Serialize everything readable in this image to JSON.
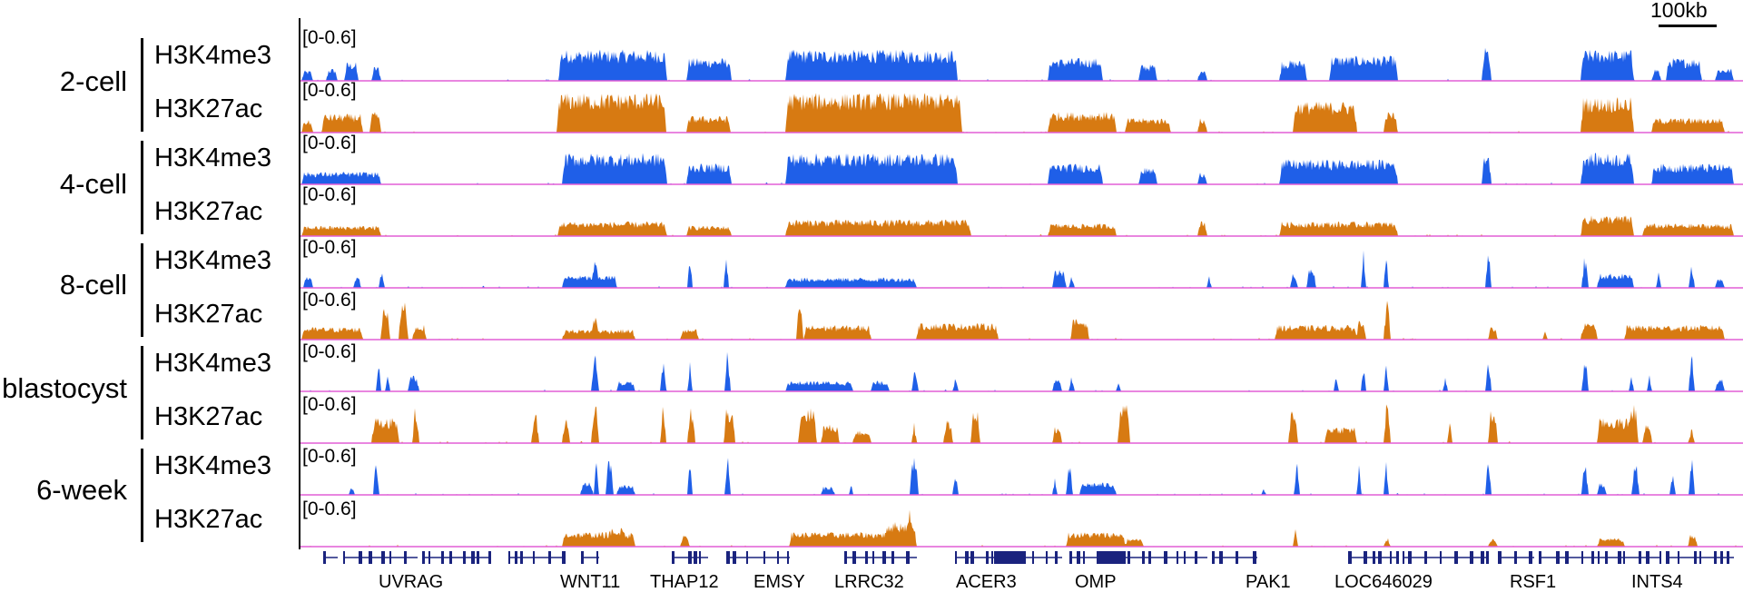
{
  "scale": "100kb",
  "range_label": "[0-0.6]",
  "colors": {
    "H3K4me3": "#1f5fe8",
    "H3K27ac": "#d77a12",
    "baseline": "#e25fd6",
    "gene": "#1a237e"
  },
  "stages": [
    {
      "name": "2-cell",
      "tracks": [
        "H3K4me3",
        "H3K27ac"
      ]
    },
    {
      "name": "4-cell",
      "tracks": [
        "H3K4me3",
        "H3K27ac"
      ]
    },
    {
      "name": "8-cell",
      "tracks": [
        "H3K4me3",
        "H3K27ac"
      ]
    },
    {
      "name": "blastocyst",
      "tracks": [
        "H3K4me3",
        "H3K27ac"
      ]
    },
    {
      "name": "6-week",
      "tracks": [
        "H3K4me3",
        "H3K27ac"
      ]
    }
  ],
  "genes": [
    "UVRAG",
    "WNT11",
    "THAP12",
    "EMSY",
    "LRRC32",
    "ACER3",
    "OMP",
    "PAK1",
    "LOC646029",
    "RSF1",
    "INTS4"
  ]
}
